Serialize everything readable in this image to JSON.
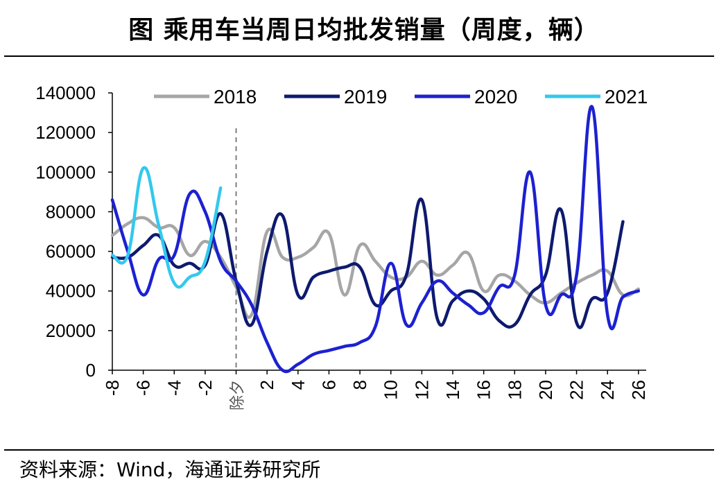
{
  "title": "图  乘用车当周日均批发销量（周度，辆）",
  "source": "资料来源：Wind，海通证券研究所",
  "divider_label": "除夕",
  "chart_data": {
    "type": "line",
    "title": "图  乘用车当周日均批发销量（周度，辆）",
    "xlabel": "",
    "ylabel": "",
    "ylim": [
      0,
      140000
    ],
    "xlim": [
      -8,
      26.5
    ],
    "yticks": [
      0,
      20000,
      40000,
      60000,
      80000,
      100000,
      120000,
      140000
    ],
    "xticks": [
      -8,
      -6,
      -4,
      -2,
      0,
      2,
      4,
      6,
      8,
      10,
      12,
      14,
      16,
      18,
      20,
      22,
      24,
      26
    ],
    "xtick_labels": [
      "-8",
      "-6",
      "-4",
      "-2",
      "除夕",
      "2",
      "4",
      "6",
      "8",
      "10",
      "12",
      "14",
      "16",
      "18",
      "20",
      "22",
      "24",
      "26"
    ],
    "divider_x": 0,
    "grid": false,
    "legend_position": "top",
    "series": [
      {
        "name": "2018",
        "color": "#a6a6a6",
        "x": [
          -8,
          -7,
          -6,
          -5,
          -4,
          -3,
          -2,
          -1,
          0,
          1,
          2,
          3,
          4,
          5,
          6,
          7,
          8,
          9,
          10,
          11,
          12,
          13,
          14,
          15,
          16,
          17,
          18,
          19,
          20,
          21,
          22,
          23,
          24,
          25,
          26
        ],
        "values": [
          68000,
          74000,
          77000,
          72000,
          72000,
          58000,
          65000,
          57000,
          42000,
          28000,
          70000,
          57000,
          57000,
          62000,
          69000,
          38000,
          63000,
          55000,
          47000,
          47000,
          55000,
          48000,
          53000,
          59000,
          40000,
          48000,
          45000,
          38000,
          34000,
          39000,
          44000,
          48000,
          50000,
          38000,
          41000
        ]
      },
      {
        "name": "2019",
        "color": "#0d1a6e",
        "x": [
          -8,
          -7,
          -6,
          -5,
          -4,
          -3,
          -2,
          -1,
          0,
          1,
          2,
          3,
          4,
          5,
          6,
          7,
          8,
          9,
          10,
          11,
          12,
          13,
          14,
          15,
          16,
          17,
          18,
          19,
          20,
          21,
          22,
          23,
          24,
          25
        ],
        "values": [
          57000,
          57000,
          63000,
          68000,
          53000,
          54000,
          53000,
          79000,
          45000,
          23000,
          60000,
          78000,
          38000,
          47000,
          50000,
          52000,
          52000,
          33000,
          40000,
          48000,
          86000,
          26000,
          35000,
          40000,
          36000,
          25000,
          23000,
          38000,
          48000,
          81000,
          24000,
          36000,
          39000,
          75000
        ]
      },
      {
        "name": "2020",
        "color": "#1c21d0",
        "x": [
          -8,
          -7,
          -6,
          -5,
          -4,
          -3,
          -2,
          -1,
          0,
          1,
          2,
          3,
          4,
          5,
          6,
          7,
          8,
          9,
          10,
          11,
          12,
          13,
          14,
          15,
          16,
          17,
          18,
          19,
          20,
          21,
          22,
          23,
          24,
          25,
          26
        ],
        "values": [
          86000,
          60000,
          38000,
          56000,
          58000,
          89000,
          80000,
          55000,
          45000,
          33000,
          14000,
          0,
          3000,
          8000,
          10000,
          12000,
          14000,
          22000,
          54000,
          23000,
          34000,
          45000,
          39000,
          33000,
          29000,
          42000,
          48000,
          100000,
          33000,
          38000,
          48000,
          133000,
          28000,
          37000,
          40000
        ]
      },
      {
        "name": "2021",
        "color": "#33c8ee",
        "x": [
          -8,
          -7,
          -6,
          -5,
          -4,
          -3,
          -2,
          -1
        ],
        "values": [
          58000,
          58000,
          102000,
          73000,
          44000,
          47000,
          55000,
          92000
        ]
      }
    ]
  }
}
